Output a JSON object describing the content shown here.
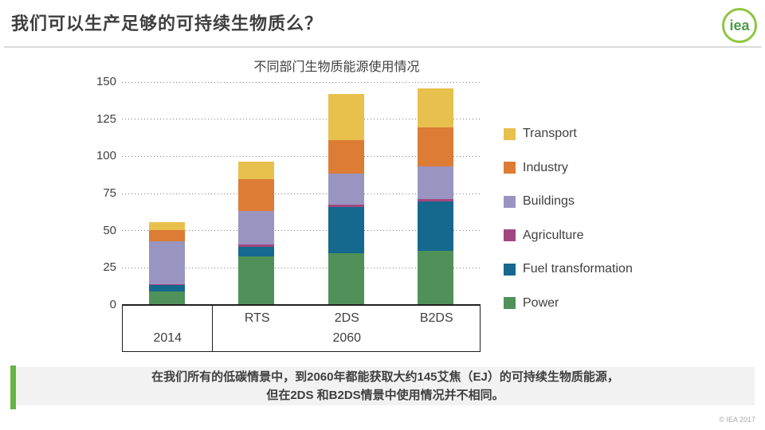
{
  "header": {
    "title": "我们可以生产足够的可持续生物质么？",
    "logo_text": "iea"
  },
  "chart_data": {
    "type": "bar",
    "stacked": true,
    "title": "不同部门生物质能源使用情况",
    "unit": "EJ",
    "categories": [
      "2014",
      "RTS",
      "2DS",
      "B2DS"
    ],
    "category_groups": [
      {
        "label": "2014",
        "start": 0,
        "end": 0
      },
      {
        "label": "2060",
        "start": 1,
        "end": 3
      }
    ],
    "ylim": [
      0,
      150
    ],
    "yticks": [
      0,
      25,
      50,
      75,
      100,
      125,
      150
    ],
    "grid": "dotted-horizontal",
    "legend_position": "right",
    "series": [
      {
        "name": "Power",
        "color": "#4f9159",
        "values": [
          9,
          32.5,
          35,
          36.5
        ]
      },
      {
        "name": "Fuel transformation",
        "color": "#15688e",
        "values": [
          4.5,
          6.5,
          31,
          33
        ]
      },
      {
        "name": "Agriculture",
        "color": "#a1477f",
        "values": [
          0.5,
          2,
          1.5,
          2
        ]
      },
      {
        "name": "Buildings",
        "color": "#9a94c1",
        "values": [
          29,
          22,
          21,
          21.5
        ]
      },
      {
        "name": "Industry",
        "color": "#dc7c35",
        "values": [
          7.5,
          21.5,
          22.5,
          26.5
        ]
      },
      {
        "name": "Transport",
        "color": "#e8c04d",
        "values": [
          5,
          12,
          31,
          26.5
        ]
      }
    ],
    "totals": [
      55.5,
      96.5,
      142,
      145.5
    ]
  },
  "banner": {
    "accent_color": "#65b546",
    "line1": "在我们所有的低碳情景中，到2060年都能获取大约145艾焦（EJ）的可持续生物质能源，",
    "line2": "但在2DS 和B2DS情景中使用情况并不相同。"
  },
  "footer": {
    "copyright": "© IEA 2017"
  }
}
